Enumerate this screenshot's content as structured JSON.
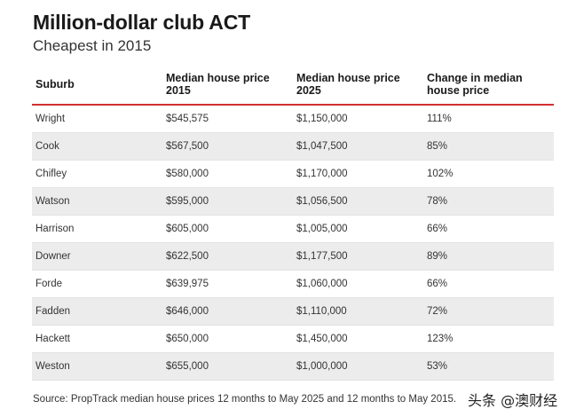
{
  "title": "Million-dollar club ACT",
  "subtitle": "Cheapest in 2015",
  "table": {
    "headers": [
      "Suburb",
      "Median house price\n2015",
      "Median house price\n2025",
      "Change in median\nhouse price"
    ],
    "rows": [
      [
        "Wright",
        "$545,575",
        "$1,150,000",
        "111%"
      ],
      [
        "Cook",
        "$567,500",
        "$1,047,500",
        "85%"
      ],
      [
        "Chifley",
        "$580,000",
        "$1,170,000",
        "102%"
      ],
      [
        "Watson",
        "$595,000",
        "$1,056,500",
        "78%"
      ],
      [
        "Harrison",
        "$605,000",
        "$1,005,000",
        "66%"
      ],
      [
        "Downer",
        "$622,500",
        "$1,177,500",
        "89%"
      ],
      [
        "Forde",
        "$639,975",
        "$1,060,000",
        "66%"
      ],
      [
        "Fadden",
        "$646,000",
        "$1,110,000",
        "72%"
      ],
      [
        "Hackett",
        "$650,000",
        "$1,450,000",
        "123%"
      ],
      [
        "Weston",
        "$655,000",
        "$1,000,000",
        "53%"
      ]
    ]
  },
  "source": "Source: PropTrack median house prices 12 months to May 2025 and 12 months to May 2015.",
  "watermark": "头条 @澳财经",
  "colors": {
    "header_rule": "#d32f2f",
    "row_stripe": "#ececec"
  }
}
